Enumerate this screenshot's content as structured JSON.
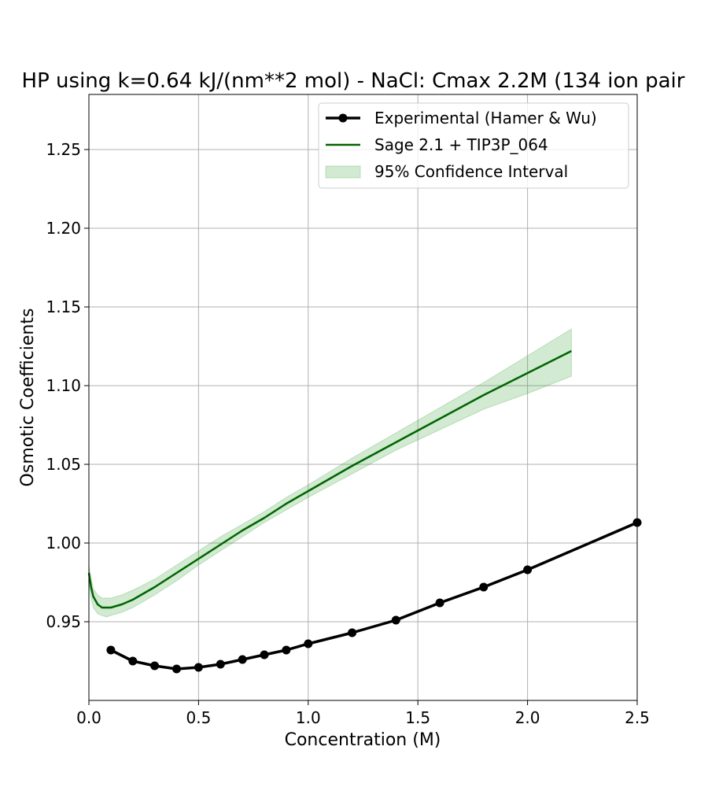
{
  "chart_data": {
    "type": "line",
    "title": "HP using k=0.64 kJ/(nm**2 mol) - NaCl: Cmax 2.2M (134 ion pair",
    "xlabel": "Concentration (M)",
    "ylabel": "Osmotic Coefficients",
    "xlim": [
      0.0,
      2.5
    ],
    "ylim": [
      0.9,
      1.285
    ],
    "xticks": [
      0.0,
      0.5,
      1.0,
      1.5,
      2.0,
      2.5
    ],
    "xtick_labels": [
      "0.0",
      "0.5",
      "1.0",
      "1.5",
      "2.0",
      "2.5"
    ],
    "yticks": [
      0.95,
      1.0,
      1.05,
      1.1,
      1.15,
      1.2,
      1.25
    ],
    "ytick_labels": [
      "0.95",
      "1.00",
      "1.05",
      "1.10",
      "1.15",
      "1.20",
      "1.25"
    ],
    "grid": true,
    "legend_position": "top-right",
    "series": [
      {
        "name": "Experimental (Hamer & Wu)",
        "style": "line-with-markers",
        "color": "#000000",
        "x": [
          0.1,
          0.2,
          0.3,
          0.4,
          0.5,
          0.6,
          0.7,
          0.8,
          0.9,
          1.0,
          1.2,
          1.4,
          1.6,
          1.8,
          2.0,
          2.5
        ],
        "y": [
          0.932,
          0.925,
          0.922,
          0.92,
          0.921,
          0.923,
          0.926,
          0.929,
          0.932,
          0.936,
          0.943,
          0.951,
          0.962,
          0.972,
          0.983,
          1.013
        ]
      },
      {
        "name": "Sage 2.1 + TIP3P_064",
        "style": "line",
        "color": "#006400",
        "x": [
          0.0,
          0.01,
          0.02,
          0.04,
          0.06,
          0.08,
          0.1,
          0.15,
          0.2,
          0.3,
          0.4,
          0.5,
          0.6,
          0.7,
          0.8,
          0.9,
          1.0,
          1.2,
          1.4,
          1.6,
          1.8,
          2.0,
          2.2
        ],
        "y": [
          0.981,
          0.972,
          0.966,
          0.961,
          0.959,
          0.959,
          0.959,
          0.961,
          0.964,
          0.972,
          0.981,
          0.99,
          0.999,
          1.008,
          1.016,
          1.025,
          1.033,
          1.049,
          1.064,
          1.079,
          1.094,
          1.108,
          1.122
        ]
      }
    ],
    "band": {
      "name": "95% Confidence Interval",
      "color": "#2ca02c",
      "opacity": 0.22,
      "x": [
        0.0,
        0.01,
        0.02,
        0.04,
        0.06,
        0.08,
        0.1,
        0.15,
        0.2,
        0.3,
        0.4,
        0.5,
        0.6,
        0.7,
        0.8,
        0.9,
        1.0,
        1.2,
        1.4,
        1.6,
        1.8,
        2.0,
        2.2
      ],
      "lower": [
        0.975,
        0.965,
        0.959,
        0.955,
        0.954,
        0.953,
        0.954,
        0.956,
        0.959,
        0.967,
        0.976,
        0.986,
        0.995,
        1.004,
        1.013,
        1.021,
        1.029,
        1.044,
        1.059,
        1.072,
        1.085,
        1.095,
        1.106
      ],
      "upper": [
        0.986,
        0.977,
        0.971,
        0.967,
        0.965,
        0.965,
        0.965,
        0.967,
        0.97,
        0.977,
        0.986,
        0.995,
        1.004,
        1.012,
        1.02,
        1.029,
        1.037,
        1.054,
        1.07,
        1.086,
        1.102,
        1.119,
        1.136
      ]
    }
  }
}
